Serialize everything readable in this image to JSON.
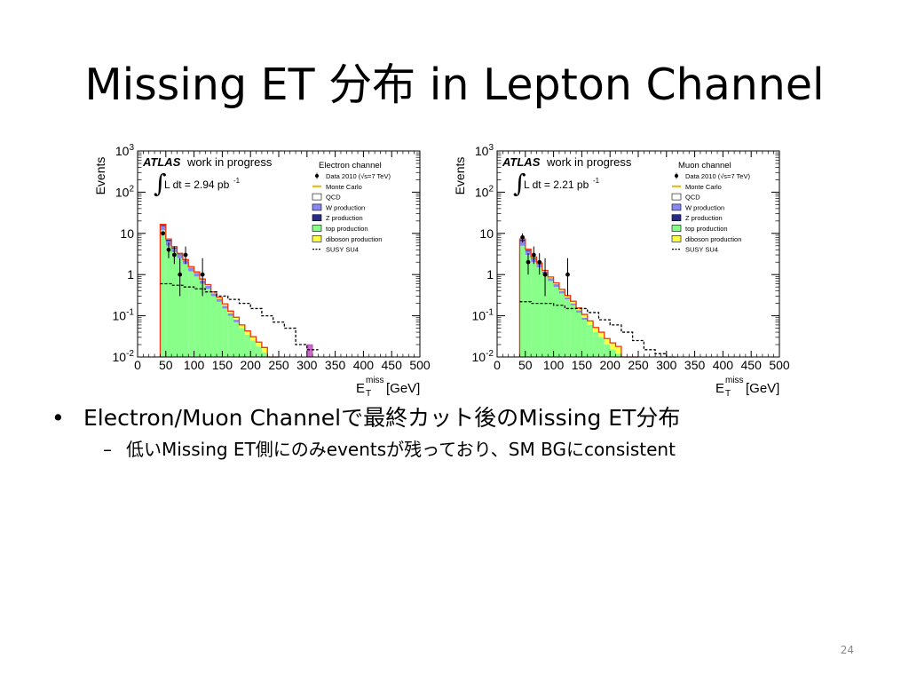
{
  "slide": {
    "title": "Missing ET 分布 in Lepton Channel",
    "bullet1": "Electron/Muon Channelで最終カット後のMissing ET分布",
    "bullet2": "低いMissing ET側にのみeventsが残っており、SM BGにconsistent",
    "bullet1_marker": "•",
    "bullet2_marker": "–",
    "page_number": "24"
  },
  "chart_data": [
    {
      "type": "histogram",
      "channel": "Electron channel",
      "experiment_label": "ATLAS",
      "status_label": "work in progress",
      "luminosity_label": "L dt = 2.94 pb",
      "luminosity_exponent": "-1",
      "ylabel": "Events",
      "xlabel": "E",
      "xlabel_sup": "miss",
      "xlabel_sub": "T",
      "xlabel_unit": "[GeV]",
      "yscale": "log",
      "xlim": [
        0,
        500
      ],
      "ylim": [
        0.01,
        1000
      ],
      "xticks": [
        0,
        50,
        100,
        150,
        200,
        250,
        300,
        350,
        400,
        450,
        500
      ],
      "yticks": [
        {
          "value": 1000,
          "base": "10",
          "exp": "3"
        },
        {
          "value": 100,
          "base": "10",
          "exp": "2"
        },
        {
          "value": 10,
          "base": "10",
          "exp": ""
        },
        {
          "value": 1,
          "base": "1",
          "exp": ""
        },
        {
          "value": 0.1,
          "base": "10",
          "exp": "-1"
        },
        {
          "value": 0.01,
          "base": "10",
          "exp": "-2"
        }
      ],
      "legend": [
        {
          "label": "Data 2010 (√s=7 TeV)",
          "kind": "marker",
          "color": "#000000"
        },
        {
          "label": "Monte Carlo",
          "kind": "line",
          "color": "#e8b800"
        },
        {
          "label": "QCD",
          "kind": "box",
          "color": "#ffffff"
        },
        {
          "label": "W production",
          "kind": "box",
          "color": "#8888ee"
        },
        {
          "label": "Z production",
          "kind": "box",
          "color": "#2a2a88"
        },
        {
          "label": "top production",
          "kind": "box",
          "color": "#88ff88"
        },
        {
          "label": "diboson production",
          "kind": "box",
          "color": "#ffff44"
        },
        {
          "label": "SUSY SU4",
          "kind": "dashed",
          "color": "#000000"
        }
      ],
      "bin_edges": [
        40,
        50,
        60,
        70,
        80,
        90,
        100,
        110,
        120,
        130,
        140,
        150,
        160,
        170,
        180,
        190,
        200,
        210,
        220,
        230,
        240,
        250
      ],
      "stack": [
        {
          "name": "top production",
          "color": "#88ff88",
          "values": [
            12,
            5,
            3.5,
            2.5,
            1.8,
            1.2,
            0.9,
            0.6,
            0.45,
            0.3,
            0.22,
            0.15,
            0.1,
            0.07,
            0.05,
            0.035,
            0.025,
            0.018,
            0.013,
            0,
            0
          ]
        },
        {
          "name": "W production",
          "color": "#8888ee",
          "values": [
            3,
            1.5,
            0.8,
            0.5,
            0.35,
            0.25,
            0.18,
            0.12,
            0.08,
            0.05,
            0.035,
            0.025,
            0.015,
            0.01,
            0,
            0,
            0,
            0,
            0,
            0,
            0
          ]
        },
        {
          "name": "Z production",
          "color": "#2a2a88",
          "values": [
            1,
            0.5,
            0.25,
            0.12,
            0.06,
            0.03,
            0.02,
            0.01,
            0,
            0,
            0,
            0,
            0,
            0,
            0,
            0,
            0,
            0,
            0,
            0,
            0
          ]
        },
        {
          "name": "diboson production",
          "color": "#ffff44",
          "values": [
            0.5,
            0.3,
            0.2,
            0.15,
            0.1,
            0.08,
            0.06,
            0.05,
            0.04,
            0.03,
            0.025,
            0.02,
            0.015,
            0.012,
            0.01,
            0.008,
            0.006,
            0.005,
            0.004,
            0.003,
            0.002
          ]
        }
      ],
      "mc_total": [
        16.5,
        7.3,
        4.75,
        3.27,
        2.31,
        1.56,
        1.16,
        0.78,
        0.57,
        0.38,
        0.28,
        0.195,
        0.13,
        0.092,
        0.06,
        0.043,
        0.031,
        0.023,
        0.017,
        0.003,
        0.002
      ],
      "susy": [
        {
          "x": [
            40,
            60
          ],
          "y": 0.6
        },
        {
          "x": [
            60,
            80
          ],
          "y": 0.55
        },
        {
          "x": [
            80,
            100
          ],
          "y": 0.5
        },
        {
          "x": [
            100,
            120
          ],
          "y": 0.45
        },
        {
          "x": [
            120,
            140
          ],
          "y": 0.38
        },
        {
          "x": [
            140,
            160
          ],
          "y": 0.3
        },
        {
          "x": [
            160,
            180
          ],
          "y": 0.25
        },
        {
          "x": [
            180,
            200
          ],
          "y": 0.2
        },
        {
          "x": [
            200,
            220
          ],
          "y": 0.15
        },
        {
          "x": [
            220,
            240
          ],
          "y": 0.1
        },
        {
          "x": [
            240,
            260
          ],
          "y": 0.07
        },
        {
          "x": [
            260,
            280
          ],
          "y": 0.05
        },
        {
          "x": [
            280,
            300
          ],
          "y": 0.02
        },
        {
          "x": [
            300,
            320
          ],
          "y": 0.015
        }
      ],
      "extra_bins": [
        {
          "x": [
            300,
            310
          ],
          "y": 0.02,
          "color": "#cc66cc"
        }
      ],
      "data": [
        {
          "x": 45,
          "y": 10,
          "err": [
            9,
            11
          ]
        },
        {
          "x": 55,
          "y": 4,
          "err": [
            2.5,
            6
          ]
        },
        {
          "x": 65,
          "y": 3,
          "err": [
            1.8,
            4.8
          ]
        },
        {
          "x": 75,
          "y": 1,
          "err": [
            0.3,
            2.5
          ]
        },
        {
          "x": 85,
          "y": 3,
          "err": [
            1.8,
            4.8
          ]
        },
        {
          "x": 115,
          "y": 1,
          "err": [
            0.3,
            2.5
          ]
        }
      ]
    },
    {
      "type": "histogram",
      "channel": "Muon channel",
      "experiment_label": "ATLAS",
      "status_label": "work in progress",
      "luminosity_label": "L dt = 2.21 pb",
      "luminosity_exponent": "-1",
      "ylabel": "Events",
      "xlabel": "E",
      "xlabel_sup": "miss",
      "xlabel_sub": "T",
      "xlabel_unit": "[GeV]",
      "yscale": "log",
      "xlim": [
        0,
        500
      ],
      "ylim": [
        0.01,
        1000
      ],
      "xticks": [
        0,
        50,
        100,
        150,
        200,
        250,
        300,
        350,
        400,
        450,
        500
      ],
      "yticks": [
        {
          "value": 1000,
          "base": "10",
          "exp": "3"
        },
        {
          "value": 100,
          "base": "10",
          "exp": "2"
        },
        {
          "value": 10,
          "base": "10",
          "exp": ""
        },
        {
          "value": 1,
          "base": "1",
          "exp": ""
        },
        {
          "value": 0.1,
          "base": "10",
          "exp": "-1"
        },
        {
          "value": 0.01,
          "base": "10",
          "exp": "-2"
        }
      ],
      "legend": [
        {
          "label": "Data 2010 (√s=7 TeV)",
          "kind": "marker",
          "color": "#000000"
        },
        {
          "label": "Monte Carlo",
          "kind": "line",
          "color": "#e8b800"
        },
        {
          "label": "QCD",
          "kind": "box",
          "color": "#ffffff"
        },
        {
          "label": "W production",
          "kind": "box",
          "color": "#8888ee"
        },
        {
          "label": "Z production",
          "kind": "box",
          "color": "#2a2a88"
        },
        {
          "label": "top production",
          "kind": "box",
          "color": "#88ff88"
        },
        {
          "label": "diboson production",
          "kind": "box",
          "color": "#ffff44"
        },
        {
          "label": "SUSY SU4",
          "kind": "dashed",
          "color": "#000000"
        }
      ],
      "bin_edges": [
        40,
        50,
        60,
        70,
        80,
        90,
        100,
        110,
        120,
        130,
        140,
        150,
        160,
        170,
        180,
        190,
        200,
        210,
        220,
        230,
        240,
        250
      ],
      "stack": [
        {
          "name": "top production",
          "color": "#88ff88",
          "values": [
            5,
            3,
            2,
            1.5,
            1,
            0.7,
            0.5,
            0.35,
            0.25,
            0.18,
            0.12,
            0.08,
            0.06,
            0.04,
            0.03,
            0.02,
            0.015,
            0.012,
            0,
            0,
            0
          ]
        },
        {
          "name": "W production",
          "color": "#8888ee",
          "values": [
            1.5,
            0.7,
            0.4,
            0.25,
            0.15,
            0.1,
            0.07,
            0.05,
            0.03,
            0.02,
            0.015,
            0.01,
            0,
            0,
            0,
            0,
            0,
            0,
            0,
            0,
            0
          ]
        },
        {
          "name": "Z production",
          "color": "#2a2a88",
          "values": [
            0.5,
            0.25,
            0.12,
            0.06,
            0.03,
            0.015,
            0.01,
            0,
            0,
            0,
            0,
            0,
            0,
            0,
            0,
            0,
            0,
            0,
            0,
            0,
            0
          ]
        },
        {
          "name": "diboson production",
          "color": "#ffff44",
          "values": [
            0.3,
            0.2,
            0.15,
            0.1,
            0.08,
            0.06,
            0.05,
            0.04,
            0.03,
            0.025,
            0.02,
            0.018,
            0.015,
            0.012,
            0.01,
            0.008,
            0.007,
            0.006,
            0.005,
            0.004,
            0.003
          ]
        }
      ],
      "mc_total": [
        7.3,
        4.15,
        2.67,
        1.91,
        1.26,
        0.875,
        0.63,
        0.44,
        0.31,
        0.225,
        0.155,
        0.108,
        0.075,
        0.052,
        0.04,
        0.028,
        0.022,
        0.018,
        0.005,
        0.004,
        0.003
      ],
      "susy": [
        {
          "x": [
            40,
            60
          ],
          "y": 0.22
        },
        {
          "x": [
            60,
            80
          ],
          "y": 0.2
        },
        {
          "x": [
            80,
            100
          ],
          "y": 0.2
        },
        {
          "x": [
            100,
            120
          ],
          "y": 0.18
        },
        {
          "x": [
            120,
            140
          ],
          "y": 0.15
        },
        {
          "x": [
            140,
            160
          ],
          "y": 0.15
        },
        {
          "x": [
            160,
            180
          ],
          "y": 0.12
        },
        {
          "x": [
            180,
            200
          ],
          "y": 0.08
        },
        {
          "x": [
            200,
            220
          ],
          "y": 0.06
        },
        {
          "x": [
            220,
            240
          ],
          "y": 0.04
        },
        {
          "x": [
            240,
            260
          ],
          "y": 0.025
        },
        {
          "x": [
            260,
            280
          ],
          "y": 0.015
        },
        {
          "x": [
            280,
            300
          ],
          "y": 0.012
        },
        {
          "x": [
            300,
            320
          ],
          "y": 0.01
        }
      ],
      "extra_bins": [],
      "data": [
        {
          "x": 45,
          "y": 8,
          "err": [
            6,
            10
          ]
        },
        {
          "x": 55,
          "y": 2,
          "err": [
            1,
            3.3
          ]
        },
        {
          "x": 65,
          "y": 3,
          "err": [
            1.8,
            4.8
          ]
        },
        {
          "x": 75,
          "y": 2,
          "err": [
            1,
            3.3
          ]
        },
        {
          "x": 85,
          "y": 1,
          "err": [
            0.3,
            2.5
          ]
        },
        {
          "x": 125,
          "y": 1,
          "err": [
            0.3,
            2.5
          ]
        }
      ]
    }
  ]
}
